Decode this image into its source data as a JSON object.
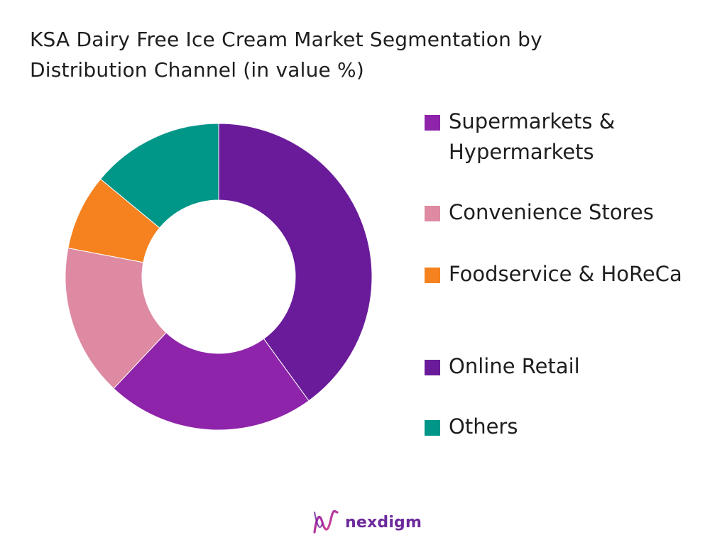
{
  "title": {
    "line1": "KSA Dairy Free Ice Cream Market Segmentation by",
    "line2": "Distribution Channel (in value %)"
  },
  "legend": [
    {
      "label": "Supermarkets & Hypermarkets",
      "color": "#8e24aa"
    },
    {
      "label": "Convenience Stores",
      "color": "#de8aa2"
    },
    {
      "label": "Foodservice & HoReCa",
      "color": "#f5821f"
    },
    {
      "label": "Online Retail",
      "color": "#6a1b9a"
    },
    {
      "label": "Others",
      "color": "#009688"
    }
  ],
  "brand": {
    "name": "nexdigm"
  },
  "chart_data": {
    "type": "pie",
    "donut": true,
    "title": "KSA Dairy Free Ice Cream Market Segmentation by Distribution Channel (in value %)",
    "categories": [
      "Online Retail",
      "Supermarkets & Hypermarkets",
      "Convenience Stores",
      "Foodservice & HoReCa",
      "Others"
    ],
    "values": [
      40,
      22,
      16,
      8,
      14
    ],
    "colors": [
      "#6a1b9a",
      "#8e24aa",
      "#de8aa2",
      "#f5821f",
      "#009688"
    ],
    "legend_position": "right"
  }
}
